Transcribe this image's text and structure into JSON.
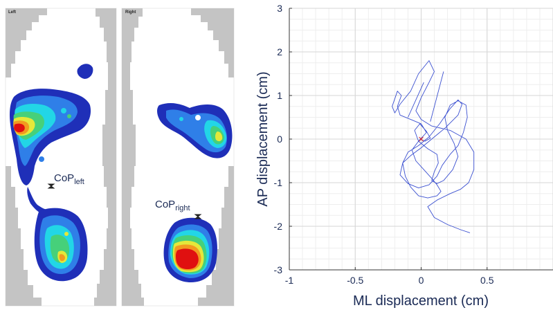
{
  "pressure_map": {
    "left_panel_title": "Left",
    "right_panel_title": "Right",
    "cop_left_label": {
      "base": "CoP",
      "sub": "left"
    },
    "cop_right_label": {
      "base": "CoP",
      "sub": "right"
    },
    "colors": {
      "blue": "#1f2fb8",
      "light_blue": "#2f7fe8",
      "cyan": "#22d6e6",
      "green": "#46d07a",
      "yellow": "#e4e83a",
      "orange": "#f29a20",
      "red": "#e01010",
      "insole_gray": "#c4c4c4"
    }
  },
  "chart_data": {
    "type": "line",
    "title": "",
    "xlabel": "ML displacement (cm)",
    "ylabel": "AP displacement (cm)",
    "xlim": [
      -1,
      1
    ],
    "ylim": [
      -3,
      3
    ],
    "xticks": [
      "-1",
      "-0.5",
      "0",
      "0.5"
    ],
    "yticks": [
      "-3",
      "-2",
      "-1",
      "0",
      "1",
      "2",
      "3"
    ],
    "grid": true,
    "series": [
      {
        "color": "#3a4fd0",
        "x": [
          0.37,
          0.3,
          0.2,
          0.1,
          0.05,
          0.12,
          0.22,
          0.3,
          0.36,
          0.4,
          0.4,
          0.34,
          0.22,
          0.08,
          0.0,
          -0.04,
          0.0,
          0.06,
          0.1,
          0.06,
          -0.02,
          -0.08,
          -0.16,
          -0.2,
          -0.22,
          -0.18,
          -0.15,
          -0.18,
          -0.16,
          -0.08,
          0.0,
          0.04,
          -0.02,
          -0.07,
          -0.04,
          0.02,
          0.08,
          0.12,
          0.15,
          0.12,
          0.05,
          -0.02,
          -0.08,
          -0.12,
          -0.14,
          -0.1,
          -0.02,
          0.06,
          0.14,
          0.22,
          0.28,
          0.31,
          0.28,
          0.18,
          0.08,
          0.0,
          -0.08,
          -0.14,
          -0.16,
          -0.1,
          -0.02,
          0.06,
          0.12,
          0.16,
          0.22,
          0.28,
          0.32,
          0.35,
          0.34,
          0.28,
          0.22,
          0.18,
          0.2,
          0.25,
          0.28,
          0.24,
          0.17,
          0.12,
          0.08,
          0.1,
          0.13,
          0.12,
          0.05,
          -0.02,
          -0.05,
          -0.01,
          0.04,
          0.07,
          0.03,
          -0.01
        ],
        "y": [
          -2.15,
          -2.08,
          -1.96,
          -1.8,
          -1.55,
          -1.4,
          -1.25,
          -1.15,
          -1.0,
          -0.7,
          -0.3,
          0.0,
          0.2,
          0.3,
          0.45,
          0.65,
          0.95,
          1.3,
          1.55,
          1.8,
          1.5,
          1.1,
          0.8,
          0.6,
          0.75,
          1.1,
          1.0,
          0.75,
          0.55,
          0.45,
          0.35,
          0.15,
          -0.05,
          -0.25,
          -0.5,
          -0.7,
          -0.9,
          -1.05,
          -1.2,
          -1.3,
          -1.35,
          -1.3,
          -1.1,
          -0.85,
          -0.55,
          -0.3,
          -0.15,
          0.05,
          0.35,
          0.7,
          0.9,
          0.8,
          0.55,
          0.25,
          0.0,
          -0.2,
          -0.38,
          -0.55,
          -0.82,
          -1.02,
          -1.12,
          -1.05,
          -0.85,
          -0.6,
          -0.35,
          -0.15,
          0.15,
          0.5,
          0.78,
          0.88,
          0.78,
          0.5,
          0.2,
          -0.1,
          -0.4,
          -0.7,
          -0.95,
          -1.02,
          -0.95,
          -0.75,
          -0.55,
          -0.35,
          -0.22,
          -0.05,
          0.2,
          0.35,
          0.18,
          0.02,
          -0.05,
          0.0
        ]
      },
      {
        "color": "#3a4fd0",
        "x": [
          0.07,
          0.17
        ],
        "y": [
          0.4,
          1.55
        ]
      },
      {
        "color": "#3a4fd0",
        "x": [
          -0.1,
          0.02
        ],
        "y": [
          0.5,
          1.3
        ]
      }
    ],
    "marker": {
      "x": 0.0,
      "y": 0.0,
      "symbol": "x",
      "color": "#e02020"
    }
  }
}
